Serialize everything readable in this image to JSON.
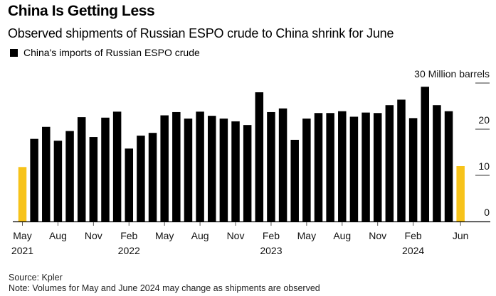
{
  "header": {
    "title": "China Is Getting Less",
    "subtitle": "Observed shipments of Russian ESPO crude to China shrink for June"
  },
  "footer": {
    "source": "Source: Kpler",
    "note": "Note: Volumes for May and June 2024 may change as shipments are observed"
  },
  "colors": {
    "bar": "#000000",
    "highlight": "#F7C31A",
    "axis": "#000000",
    "grid": "#333333"
  },
  "chart_data": {
    "type": "bar",
    "title": "China Is Getting Less",
    "subtitle": "Observed shipments of Russian ESPO crude to China shrink for June",
    "xlabel": "",
    "ylabel": "Million barrels",
    "ylim": [
      0,
      30
    ],
    "yticks": [
      0,
      10,
      20,
      30
    ],
    "ytick_labels": [
      "0",
      "10",
      "20",
      "30 Million barrels"
    ],
    "legend": {
      "position": "top-left",
      "entries": [
        "China's imports of Russian ESPO crude"
      ]
    },
    "grid": false,
    "xtick_labels": [
      {
        "index": 0,
        "month": "May",
        "year": "2021"
      },
      {
        "index": 3,
        "month": "Aug",
        "year": ""
      },
      {
        "index": 6,
        "month": "Nov",
        "year": ""
      },
      {
        "index": 9,
        "month": "Feb",
        "year": "2022"
      },
      {
        "index": 12,
        "month": "May",
        "year": ""
      },
      {
        "index": 15,
        "month": "Aug",
        "year": ""
      },
      {
        "index": 18,
        "month": "Nov",
        "year": ""
      },
      {
        "index": 21,
        "month": "Feb",
        "year": "2023"
      },
      {
        "index": 24,
        "month": "May",
        "year": ""
      },
      {
        "index": 27,
        "month": "Aug",
        "year": ""
      },
      {
        "index": 30,
        "month": "Nov",
        "year": ""
      },
      {
        "index": 33,
        "month": "Feb",
        "year": "2024"
      },
      {
        "index": 37,
        "month": "Jun",
        "year": ""
      }
    ],
    "categories": [
      "May 2021",
      "Jun 2021",
      "Jul 2021",
      "Aug 2021",
      "Sep 2021",
      "Oct 2021",
      "Nov 2021",
      "Dec 2021",
      "Jan 2022",
      "Feb 2022",
      "Mar 2022",
      "Apr 2022",
      "May 2022",
      "Jun 2022",
      "Jul 2022",
      "Aug 2022",
      "Sep 2022",
      "Oct 2022",
      "Nov 2022",
      "Dec 2022",
      "Jan 2023",
      "Feb 2023",
      "Mar 2023",
      "Apr 2023",
      "May 2023",
      "Jun 2023",
      "Jul 2023",
      "Aug 2023",
      "Sep 2023",
      "Oct 2023",
      "Nov 2023",
      "Dec 2023",
      "Jan 2024",
      "Feb 2024",
      "Mar 2024",
      "Apr 2024",
      "May 2024",
      "Jun 2024"
    ],
    "series": [
      {
        "name": "China's imports of Russian ESPO crude",
        "values": [
          11.8,
          17.9,
          20.5,
          17.5,
          19.6,
          22.6,
          18.3,
          22.5,
          23.8,
          15.8,
          18.6,
          19.2,
          23.0,
          23.7,
          22.3,
          23.8,
          22.9,
          22.3,
          21.7,
          20.9,
          28.0,
          23.7,
          24.5,
          17.7,
          22.3,
          23.5,
          23.5,
          23.9,
          22.7,
          23.6,
          23.5,
          25.2,
          26.4,
          22.4,
          29.2,
          25.2,
          23.9,
          12.0
        ],
        "highlighted": [
          0,
          37
        ]
      }
    ]
  }
}
